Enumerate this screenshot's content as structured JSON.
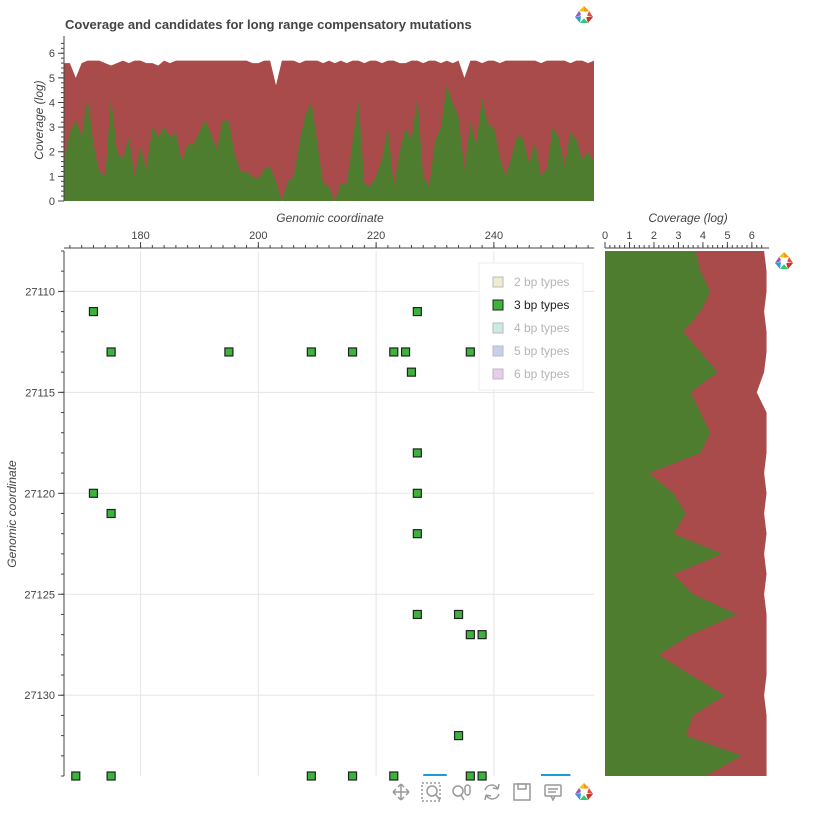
{
  "chart_data": [
    {
      "id": "top-coverage",
      "type": "area",
      "title": "Coverage and candidates for long range compensatory mutations",
      "ylabel": "Coverage (log)",
      "xlabel": "Genomic coordinate",
      "xlim": [
        167,
        257
      ],
      "ylim": [
        0,
        6.7
      ],
      "yticks": [
        0,
        1,
        2,
        3,
        4,
        5,
        6
      ],
      "series": [
        {
          "color": "#a94b4b",
          "x": [
            167,
            168,
            169,
            170,
            171,
            172,
            173,
            174,
            175,
            176,
            177,
            178,
            179,
            180,
            181,
            182,
            183,
            184,
            185,
            186,
            187,
            188,
            189,
            190,
            191,
            192,
            193,
            194,
            195,
            196,
            197,
            198,
            199,
            200,
            201,
            202,
            203,
            204,
            205,
            206,
            207,
            208,
            209,
            210,
            211,
            212,
            213,
            214,
            215,
            216,
            217,
            218,
            219,
            220,
            221,
            222,
            223,
            224,
            225,
            226,
            227,
            228,
            229,
            230,
            231,
            232,
            233,
            234,
            235,
            236,
            237,
            238,
            239,
            240,
            241,
            242,
            243,
            244,
            245,
            246,
            247,
            248,
            249,
            250,
            251,
            252,
            253,
            254,
            255,
            256,
            257
          ],
          "values": [
            5.6,
            5.6,
            5.0,
            5.6,
            5.7,
            5.7,
            5.7,
            5.6,
            5.5,
            5.6,
            5.7,
            5.6,
            5.7,
            5.7,
            5.6,
            5.6,
            5.5,
            5.7,
            5.6,
            5.7,
            5.7,
            5.7,
            5.7,
            5.7,
            5.7,
            5.7,
            5.7,
            5.7,
            5.7,
            5.7,
            5.7,
            5.7,
            5.6,
            5.6,
            5.7,
            5.7,
            4.7,
            5.7,
            5.7,
            5.7,
            5.6,
            5.7,
            5.7,
            5.7,
            5.6,
            5.7,
            5.6,
            5.7,
            5.6,
            5.7,
            5.7,
            5.6,
            5.7,
            5.7,
            5.6,
            5.7,
            5.7,
            5.6,
            5.6,
            5.7,
            5.7,
            5.6,
            5.7,
            5.7,
            5.6,
            5.7,
            5.6,
            5.7,
            5.0,
            5.7,
            5.7,
            5.6,
            5.7,
            5.7,
            5.6,
            5.7,
            5.7,
            5.7,
            5.7,
            5.7,
            5.7,
            5.6,
            5.7,
            5.7,
            5.7,
            5.7,
            5.6,
            5.7,
            5.7,
            5.6,
            5.7
          ]
        },
        {
          "color": "#4e7d2f",
          "x": [
            167,
            168,
            169,
            170,
            171,
            172,
            173,
            174,
            175,
            176,
            177,
            178,
            179,
            180,
            181,
            182,
            183,
            184,
            185,
            186,
            187,
            188,
            189,
            190,
            191,
            192,
            193,
            194,
            195,
            196,
            197,
            198,
            199,
            200,
            201,
            202,
            203,
            204,
            205,
            206,
            207,
            208,
            209,
            210,
            211,
            212,
            213,
            214,
            215,
            216,
            217,
            218,
            219,
            220,
            221,
            222,
            223,
            224,
            225,
            226,
            227,
            228,
            229,
            230,
            231,
            232,
            233,
            234,
            235,
            236,
            237,
            238,
            239,
            240,
            241,
            242,
            243,
            244,
            245,
            246,
            247,
            248,
            249,
            250,
            251,
            252,
            253,
            254,
            255,
            256,
            257
          ],
          "values": [
            1.6,
            2.8,
            3.3,
            2.6,
            4.2,
            2.3,
            1.2,
            1.0,
            4.2,
            2.0,
            1.7,
            2.6,
            1.0,
            2.2,
            1.3,
            3.0,
            2.6,
            3.0,
            2.6,
            2.8,
            1.6,
            2.3,
            2.3,
            2.8,
            3.3,
            2.7,
            2.1,
            3.3,
            3.2,
            1.9,
            1.2,
            1.2,
            1.0,
            0.9,
            1.3,
            1.4,
            0.8,
            0.0,
            0.8,
            1.0,
            2.4,
            3.5,
            4.0,
            2.4,
            0.7,
            0.6,
            0.0,
            0.7,
            0.7,
            2.4,
            4.1,
            0.7,
            0.6,
            1.0,
            1.7,
            3.0,
            0.6,
            2.0,
            3.0,
            2.5,
            4.2,
            1.0,
            0.6,
            2.4,
            3.0,
            4.7,
            4.0,
            3.4,
            1.3,
            3.2,
            2.3,
            4.2,
            3.1,
            3.0,
            1.8,
            1.0,
            1.8,
            2.7,
            2.5,
            1.5,
            2.4,
            1.0,
            1.3,
            3.0,
            2.6,
            1.4,
            2.8,
            2.5,
            1.7,
            2.0,
            1.6
          ]
        }
      ]
    },
    {
      "id": "scatter",
      "type": "scatter",
      "xlabel": "Genomic coordinate",
      "ylabel": "Genomic coordinate",
      "xlim": [
        167,
        257
      ],
      "ylim": [
        27108,
        27134
      ],
      "xticks": [
        180,
        200,
        220,
        240
      ],
      "yticks": [
        27110,
        27115,
        27120,
        27125,
        27130
      ],
      "legend": {
        "placement": "top-right",
        "entries": [
          {
            "label": "2 bp types",
            "color": "#e6e0b0",
            "active": false
          },
          {
            "label": "3 bp types",
            "color": "#3cb43c",
            "active": true
          },
          {
            "label": "4 bp types",
            "color": "#a8dcd0",
            "active": false
          },
          {
            "label": "5 bp types",
            "color": "#a0b0e0",
            "active": false
          },
          {
            "label": "6 bp types",
            "color": "#dba8e0",
            "active": false
          }
        ]
      },
      "series": [
        {
          "name": "3 bp types",
          "color": "#3cb43c",
          "points": [
            [
              172,
              27111
            ],
            [
              227,
              27111
            ],
            [
              175,
              27113
            ],
            [
              195,
              27113
            ],
            [
              209,
              27113
            ],
            [
              216,
              27113
            ],
            [
              223,
              27113
            ],
            [
              225,
              27113
            ],
            [
              236,
              27113
            ],
            [
              226,
              27114
            ],
            [
              227,
              27118
            ],
            [
              172,
              27120
            ],
            [
              227,
              27120
            ],
            [
              175,
              27121
            ],
            [
              227,
              27122
            ],
            [
              227,
              27126
            ],
            [
              234,
              27126
            ],
            [
              236,
              27127
            ],
            [
              238,
              27127
            ],
            [
              234,
              27132
            ],
            [
              169,
              27134
            ],
            [
              175,
              27134
            ],
            [
              209,
              27134
            ],
            [
              216,
              27134
            ],
            [
              223,
              27134
            ],
            [
              236,
              27134
            ],
            [
              238,
              27134
            ]
          ]
        }
      ],
      "highlight_segments": [
        {
          "x": [
            228,
            232
          ],
          "color": "#1e9bd7"
        },
        {
          "x": [
            248,
            253
          ],
          "color": "#1e9bd7"
        }
      ]
    },
    {
      "id": "right-coverage",
      "type": "area",
      "orientation": "vertical",
      "xlabel": "Coverage (log)",
      "xlim": [
        0,
        6.7
      ],
      "xticks": [
        0,
        1,
        2,
        3,
        4,
        5,
        6
      ],
      "ylim": [
        27108,
        27134
      ],
      "series": [
        {
          "color": "#a94b4b",
          "y": [
            27108,
            27109,
            27110,
            27111,
            27112,
            27113,
            27114,
            27115,
            27116,
            27117,
            27118,
            27119,
            27120,
            27121,
            27122,
            27123,
            27124,
            27125,
            27126,
            27127,
            27128,
            27129,
            27130,
            27131,
            27132,
            27133,
            27134
          ],
          "values": [
            6.5,
            6.6,
            6.6,
            6.5,
            6.6,
            6.6,
            6.5,
            6.2,
            6.6,
            6.6,
            6.6,
            6.5,
            6.6,
            6.5,
            6.6,
            6.5,
            6.6,
            6.5,
            6.6,
            6.6,
            6.6,
            6.6,
            6.5,
            6.6,
            6.6,
            6.6,
            6.6
          ]
        },
        {
          "color": "#4e7d2f",
          "y": [
            27108,
            27109,
            27110,
            27111,
            27112,
            27113,
            27114,
            27115,
            27116,
            27117,
            27118,
            27119,
            27120,
            27121,
            27122,
            27123,
            27124,
            27125,
            27126,
            27127,
            27128,
            27129,
            27130,
            27131,
            27132,
            27133,
            27134
          ],
          "values": [
            3.7,
            3.9,
            4.3,
            3.9,
            3.2,
            3.9,
            4.6,
            3.5,
            3.9,
            4.3,
            3.9,
            1.8,
            2.8,
            3.3,
            2.8,
            4.8,
            2.8,
            3.6,
            5.4,
            3.5,
            2.2,
            3.5,
            4.9,
            3.6,
            3.3,
            5.6,
            4.1
          ]
        }
      ]
    }
  ],
  "toolbar": {
    "icons": [
      "pan-icon",
      "box-zoom-icon",
      "wheel-zoom-icon",
      "reset-icon",
      "save-icon",
      "hover-icon",
      "bokeh-logo"
    ]
  }
}
